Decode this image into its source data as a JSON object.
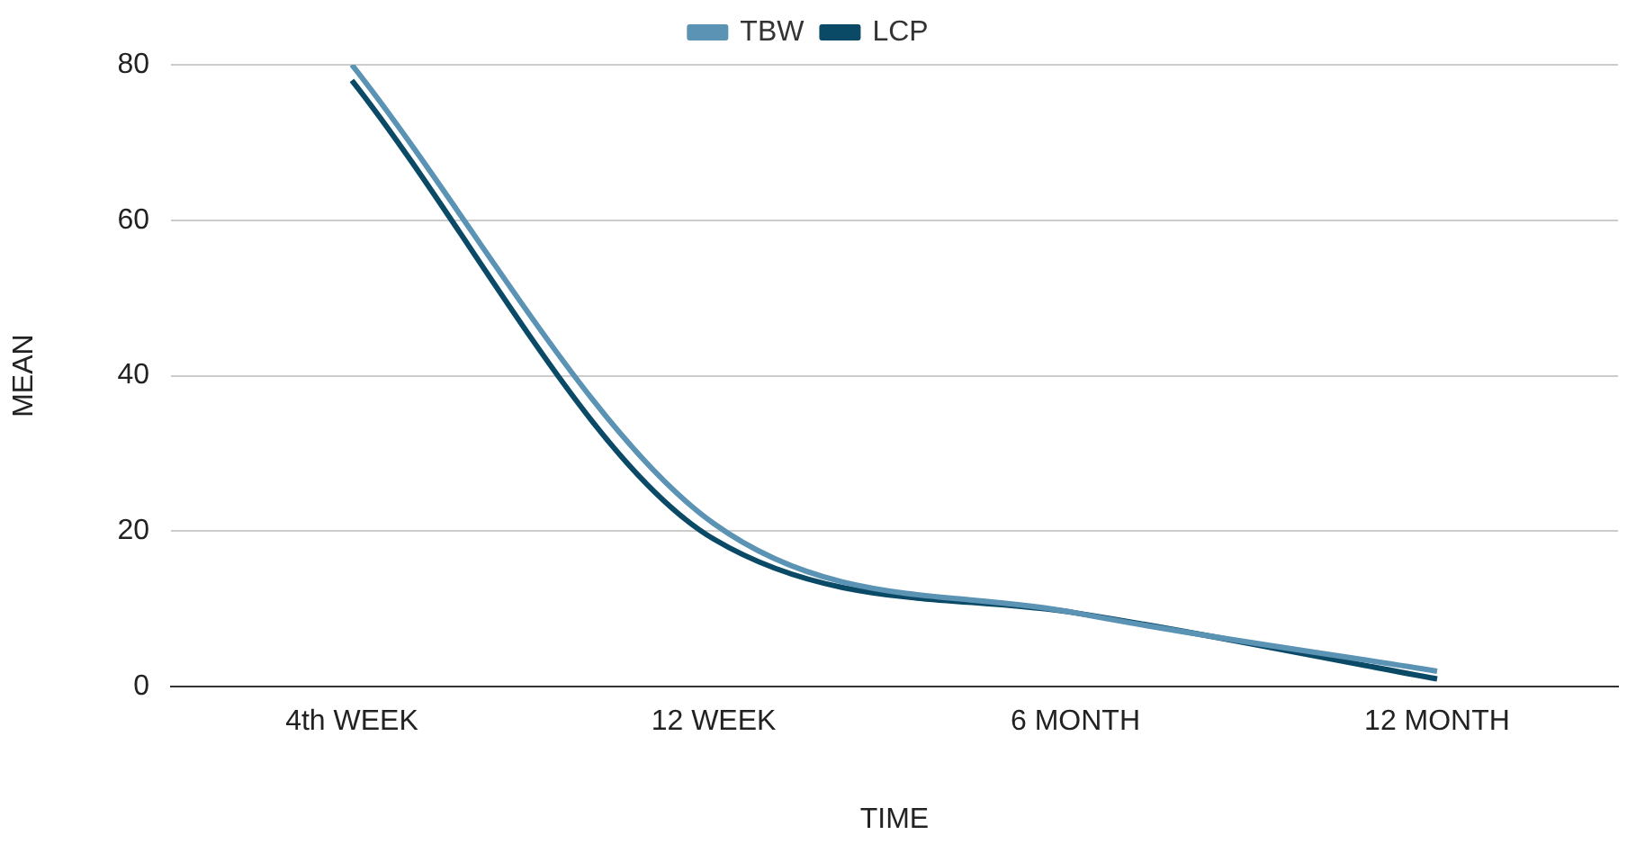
{
  "chart_data": {
    "type": "line",
    "xlabel": "TIME",
    "ylabel": "MEAN",
    "categories": [
      "4th WEEK",
      "12 WEEK",
      "6 MONTH",
      "12 MONTH"
    ],
    "series": [
      {
        "name": "TBW",
        "color": "#5b93b5",
        "values": [
          80,
          21,
          9.5,
          2
        ]
      },
      {
        "name": "LCP",
        "color": "#0b4a66",
        "values": [
          78,
          19,
          9.5,
          1
        ]
      }
    ],
    "ylim": [
      0,
      80
    ],
    "yticks": [
      0,
      20,
      40,
      60,
      80
    ],
    "grid": "y",
    "legend": "top",
    "marker": "none"
  }
}
